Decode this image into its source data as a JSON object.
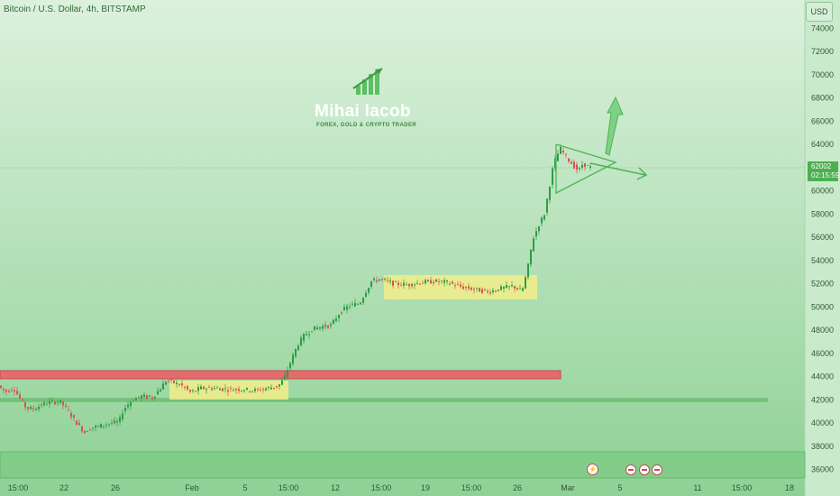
{
  "window": {
    "title": "Bitcoin / U.S. Dollar, 4h, BITSTAMP"
  },
  "currency_button": "USD",
  "price_tag": {
    "value": "62002",
    "countdown": "02:15:59"
  },
  "logo": {
    "name": "Mihai Iacob",
    "subtitle": "FOREX, GOLD & CRYPTO TRADER"
  },
  "colors": {
    "background": "#b9e3bd",
    "up": "#2e9c45",
    "down": "#d9524f",
    "resistance_zone": "#e06a6a",
    "consolidation_zone": "#f3f28a",
    "support_line": "#6cc070",
    "arrow": "#4cb454"
  },
  "icons": [
    "flash-icon",
    "economic-event-icon",
    "economic-event-icon",
    "economic-event-icon"
  ],
  "chart_data": {
    "type": "candlestick",
    "symbol": "Bitcoin / U.S. Dollar",
    "interval": "4h",
    "exchange": "BITSTAMP",
    "ylim": [
      35000,
      75000
    ],
    "y_ticks": [
      36000,
      38000,
      40000,
      42000,
      44000,
      46000,
      48000,
      50000,
      52000,
      54000,
      56000,
      58000,
      60000,
      62000,
      64000,
      66000,
      68000,
      70000,
      72000,
      74000
    ],
    "x_tick_labels": [
      "15:00",
      "22",
      "26",
      "Feb",
      "5",
      "15:00",
      "12",
      "15:00",
      "19",
      "15:00",
      "26",
      "Mar",
      "5",
      "11",
      "15:00",
      "18"
    ],
    "last_price": 62002,
    "price_path": [
      [
        0,
        43300
      ],
      [
        5,
        42900
      ],
      [
        10,
        42700
      ],
      [
        18,
        43000
      ],
      [
        25,
        42100
      ],
      [
        32,
        41300
      ],
      [
        40,
        41200
      ],
      [
        50,
        41600
      ],
      [
        60,
        41800
      ],
      [
        70,
        41800
      ],
      [
        78,
        41100
      ],
      [
        85,
        40300
      ],
      [
        92,
        39600
      ],
      [
        97,
        39200
      ],
      [
        104,
        39600
      ],
      [
        112,
        39700
      ],
      [
        120,
        39900
      ],
      [
        135,
        40100
      ],
      [
        140,
        41200
      ],
      [
        150,
        42000
      ],
      [
        160,
        42300
      ],
      [
        172,
        42200
      ],
      [
        180,
        42900
      ],
      [
        188,
        43700
      ],
      [
        195,
        43500
      ],
      [
        205,
        43200
      ],
      [
        215,
        42600
      ],
      [
        225,
        43000
      ],
      [
        240,
        43000
      ],
      [
        255,
        42900
      ],
      [
        270,
        42900
      ],
      [
        285,
        42800
      ],
      [
        300,
        43000
      ],
      [
        312,
        43200
      ],
      [
        318,
        43800
      ],
      [
        325,
        45200
      ],
      [
        333,
        46700
      ],
      [
        340,
        47500
      ],
      [
        350,
        48100
      ],
      [
        360,
        48300
      ],
      [
        370,
        48400
      ],
      [
        380,
        49500
      ],
      [
        390,
        50100
      ],
      [
        402,
        50300
      ],
      [
        408,
        51200
      ],
      [
        415,
        52200
      ],
      [
        425,
        52400
      ],
      [
        440,
        52000
      ],
      [
        455,
        51900
      ],
      [
        470,
        52100
      ],
      [
        485,
        52200
      ],
      [
        500,
        52100
      ],
      [
        515,
        51700
      ],
      [
        530,
        51500
      ],
      [
        545,
        51300
      ],
      [
        560,
        51600
      ],
      [
        572,
        51800
      ],
      [
        582,
        51300
      ],
      [
        588,
        53100
      ],
      [
        594,
        55800
      ],
      [
        601,
        57100
      ],
      [
        607,
        58000
      ],
      [
        612,
        60100
      ],
      [
        616,
        61800
      ],
      [
        620,
        62900
      ],
      [
        625,
        63600
      ],
      [
        632,
        62800
      ],
      [
        640,
        62100
      ],
      [
        645,
        61700
      ],
      [
        650,
        62400
      ],
      [
        656,
        62002
      ]
    ],
    "zones": [
      {
        "type": "resistance",
        "y_from": 43800,
        "y_to": 44500
      },
      {
        "type": "support",
        "y_from": 41850,
        "y_to": 42000
      },
      {
        "type": "bottom",
        "y_from": 36000,
        "y_to": 37500
      },
      {
        "type": "consolidation",
        "y_from": 42300,
        "y_to": 43850
      },
      {
        "type": "consolidation",
        "y_from": 50800,
        "y_to": 52900
      }
    ],
    "annotations": [
      "triangle pattern",
      "breakout arrow up",
      "breakout arrow right"
    ],
    "grid": false,
    "legend": "none"
  }
}
